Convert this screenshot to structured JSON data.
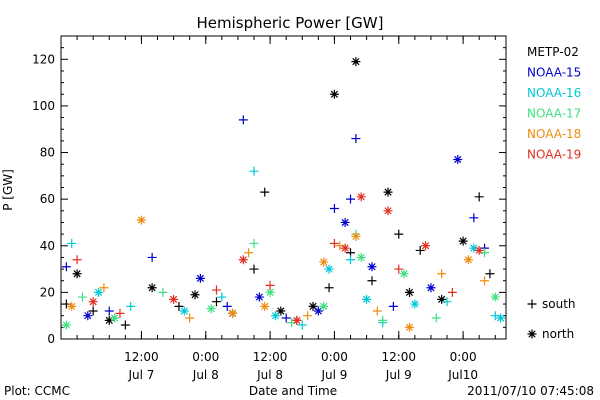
{
  "chart_data": {
    "type": "scatter",
    "title": "Hemispheric Power [GW]",
    "xlabel": "Date and Time",
    "ylabel": "P [GW]",
    "ylim": [
      0,
      130
    ],
    "xlim": [
      "2011-07-06T21:00",
      "2011-07-10T08:00"
    ],
    "y_ticks": [
      0,
      20,
      40,
      60,
      80,
      100,
      120
    ],
    "x_ticks": [
      {
        "time": "2011-07-07T12:00",
        "hour": "12:00",
        "day": "Jul 7"
      },
      {
        "time": "2011-07-08T00:00",
        "hour": "0:00",
        "day": "Jul 8"
      },
      {
        "time": "2011-07-08T12:00",
        "hour": "12:00",
        "day": "Jul 8"
      },
      {
        "time": "2011-07-09T00:00",
        "hour": "0:00",
        "day": "Jul 9"
      },
      {
        "time": "2011-07-09T12:00",
        "hour": "12:00",
        "day": "Jul 9"
      },
      {
        "time": "2011-07-10T00:00",
        "hour": "0:00",
        "day": "Jul10"
      }
    ],
    "grid": false,
    "legend_position": "right",
    "markers": {
      "south": "+",
      "north": "*"
    },
    "series": [
      {
        "name": "METP-02",
        "color": "#000000",
        "points": [
          [
            "2011-07-06T22:00",
            15,
            "south"
          ],
          [
            "2011-07-07T00:00",
            28,
            "north"
          ],
          [
            "2011-07-07T03:00",
            12,
            "south"
          ],
          [
            "2011-07-07T06:00",
            8,
            "north"
          ],
          [
            "2011-07-07T09:00",
            6,
            "south"
          ],
          [
            "2011-07-07T14:00",
            22,
            "north"
          ],
          [
            "2011-07-07T19:00",
            14,
            "south"
          ],
          [
            "2011-07-07T22:00",
            19,
            "north"
          ],
          [
            "2011-07-08T02:00",
            16,
            "south"
          ],
          [
            "2011-07-08T05:00",
            11,
            "north"
          ],
          [
            "2011-07-08T09:00",
            30,
            "south"
          ],
          [
            "2011-07-08T11:00",
            63,
            "south"
          ],
          [
            "2011-07-08T14:00",
            12,
            "north"
          ],
          [
            "2011-07-08T17:00",
            8,
            "south"
          ],
          [
            "2011-07-08T20:00",
            14,
            "north"
          ],
          [
            "2011-07-08T23:00",
            22,
            "south"
          ],
          [
            "2011-07-09T00:00",
            105,
            "north"
          ],
          [
            "2011-07-09T03:00",
            37,
            "south"
          ],
          [
            "2011-07-09T04:00",
            119,
            "north"
          ],
          [
            "2011-07-09T07:00",
            25,
            "south"
          ],
          [
            "2011-07-09T10:00",
            63,
            "north"
          ],
          [
            "2011-07-09T12:00",
            45,
            "south"
          ],
          [
            "2011-07-09T14:00",
            20,
            "north"
          ],
          [
            "2011-07-09T16:00",
            38,
            "south"
          ],
          [
            "2011-07-09T20:00",
            17,
            "north"
          ],
          [
            "2011-07-10T00:00",
            42,
            "north"
          ],
          [
            "2011-07-10T03:00",
            61,
            "south"
          ],
          [
            "2011-07-10T05:00",
            28,
            "south"
          ]
        ]
      },
      {
        "name": "NOAA-15",
        "color": "#0000d0",
        "points": [
          [
            "2011-07-06T22:00",
            31,
            "south"
          ],
          [
            "2011-07-07T02:00",
            10,
            "north"
          ],
          [
            "2011-07-07T06:00",
            12,
            "south"
          ],
          [
            "2011-07-07T14:00",
            35,
            "south"
          ],
          [
            "2011-07-07T23:00",
            26,
            "north"
          ],
          [
            "2011-07-08T04:00",
            14,
            "south"
          ],
          [
            "2011-07-08T07:00",
            94,
            "south"
          ],
          [
            "2011-07-08T10:00",
            18,
            "north"
          ],
          [
            "2011-07-08T15:00",
            9,
            "south"
          ],
          [
            "2011-07-08T21:00",
            12,
            "north"
          ],
          [
            "2011-07-09T00:00",
            56,
            "south"
          ],
          [
            "2011-07-09T02:00",
            50,
            "north"
          ],
          [
            "2011-07-09T03:00",
            60,
            "south"
          ],
          [
            "2011-07-09T04:00",
            86,
            "south"
          ],
          [
            "2011-07-09T07:00",
            31,
            "north"
          ],
          [
            "2011-07-09T11:00",
            14,
            "south"
          ],
          [
            "2011-07-09T18:00",
            22,
            "north"
          ],
          [
            "2011-07-09T23:00",
            77,
            "north"
          ],
          [
            "2011-07-10T02:00",
            52,
            "south"
          ],
          [
            "2011-07-10T04:00",
            39,
            "south"
          ]
        ]
      },
      {
        "name": "NOAA-16",
        "color": "#00c8d8",
        "points": [
          [
            "2011-07-06T23:00",
            41,
            "south"
          ],
          [
            "2011-07-07T04:00",
            20,
            "north"
          ],
          [
            "2011-07-07T10:00",
            14,
            "south"
          ],
          [
            "2011-07-07T20:00",
            12,
            "north"
          ],
          [
            "2011-07-08T03:00",
            18,
            "south"
          ],
          [
            "2011-07-08T09:00",
            72,
            "south"
          ],
          [
            "2011-07-08T13:00",
            10,
            "north"
          ],
          [
            "2011-07-08T18:00",
            6,
            "south"
          ],
          [
            "2011-07-08T23:00",
            30,
            "north"
          ],
          [
            "2011-07-09T03:00",
            34,
            "south"
          ],
          [
            "2011-07-09T06:00",
            17,
            "north"
          ],
          [
            "2011-07-09T09:00",
            7,
            "south"
          ],
          [
            "2011-07-09T15:00",
            15,
            "north"
          ],
          [
            "2011-07-09T21:00",
            16,
            "south"
          ],
          [
            "2011-07-10T02:00",
            39,
            "north"
          ],
          [
            "2011-07-10T06:00",
            10,
            "south"
          ],
          [
            "2011-07-10T07:00",
            9,
            "north"
          ]
        ]
      },
      {
        "name": "NOAA-17",
        "color": "#40e080",
        "points": [
          [
            "2011-07-06T22:00",
            6,
            "north"
          ],
          [
            "2011-07-07T01:00",
            18,
            "south"
          ],
          [
            "2011-07-07T07:00",
            9,
            "north"
          ],
          [
            "2011-07-07T16:00",
            20,
            "south"
          ],
          [
            "2011-07-08T01:00",
            13,
            "north"
          ],
          [
            "2011-07-08T09:00",
            41,
            "south"
          ],
          [
            "2011-07-08T12:00",
            20,
            "north"
          ],
          [
            "2011-07-08T16:00",
            7,
            "south"
          ],
          [
            "2011-07-08T22:00",
            14,
            "north"
          ],
          [
            "2011-07-09T04:00",
            45,
            "south"
          ],
          [
            "2011-07-09T05:00",
            35,
            "north"
          ],
          [
            "2011-07-09T09:00",
            8,
            "south"
          ],
          [
            "2011-07-09T13:00",
            28,
            "north"
          ],
          [
            "2011-07-09T19:00",
            9,
            "south"
          ],
          [
            "2011-07-10T04:00",
            37,
            "south"
          ],
          [
            "2011-07-10T06:00",
            18,
            "north"
          ]
        ]
      },
      {
        "name": "NOAA-18",
        "color": "#f08c10",
        "points": [
          [
            "2011-07-06T23:00",
            14,
            "north"
          ],
          [
            "2011-07-07T05:00",
            22,
            "south"
          ],
          [
            "2011-07-07T12:00",
            51,
            "north"
          ],
          [
            "2011-07-07T21:00",
            9,
            "south"
          ],
          [
            "2011-07-08T05:00",
            11,
            "north"
          ],
          [
            "2011-07-08T08:00",
            37,
            "south"
          ],
          [
            "2011-07-08T11:00",
            14,
            "north"
          ],
          [
            "2011-07-08T19:00",
            10,
            "south"
          ],
          [
            "2011-07-08T22:00",
            33,
            "north"
          ],
          [
            "2011-07-09T01:00",
            40,
            "south"
          ],
          [
            "2011-07-09T04:00",
            44,
            "north"
          ],
          [
            "2011-07-09T08:00",
            12,
            "south"
          ],
          [
            "2011-07-09T14:00",
            5,
            "north"
          ],
          [
            "2011-07-09T20:00",
            28,
            "south"
          ],
          [
            "2011-07-10T01:00",
            34,
            "north"
          ],
          [
            "2011-07-10T04:00",
            25,
            "south"
          ]
        ]
      },
      {
        "name": "NOAA-19",
        "color": "#e03020",
        "points": [
          [
            "2011-07-07T00:00",
            34,
            "south"
          ],
          [
            "2011-07-07T03:00",
            16,
            "north"
          ],
          [
            "2011-07-07T08:00",
            11,
            "south"
          ],
          [
            "2011-07-07T18:00",
            17,
            "north"
          ],
          [
            "2011-07-08T02:00",
            21,
            "south"
          ],
          [
            "2011-07-08T07:00",
            34,
            "north"
          ],
          [
            "2011-07-08T12:00",
            23,
            "south"
          ],
          [
            "2011-07-08T17:00",
            8,
            "north"
          ],
          [
            "2011-07-09T00:00",
            41,
            "south"
          ],
          [
            "2011-07-09T02:00",
            39,
            "north"
          ],
          [
            "2011-07-09T05:00",
            61,
            "north"
          ],
          [
            "2011-07-09T10:00",
            55,
            "north"
          ],
          [
            "2011-07-09T12:00",
            30,
            "south"
          ],
          [
            "2011-07-09T17:00",
            40,
            "north"
          ],
          [
            "2011-07-09T22:00",
            20,
            "south"
          ],
          [
            "2011-07-10T03:00",
            38,
            "north"
          ]
        ]
      }
    ],
    "legend_markers": [
      {
        "symbol": "+",
        "label": "south"
      },
      {
        "symbol": "*",
        "label": "north"
      }
    ]
  },
  "footer": {
    "left": "Plot: CCMC",
    "right": "2011/07/10 07:45:08"
  }
}
